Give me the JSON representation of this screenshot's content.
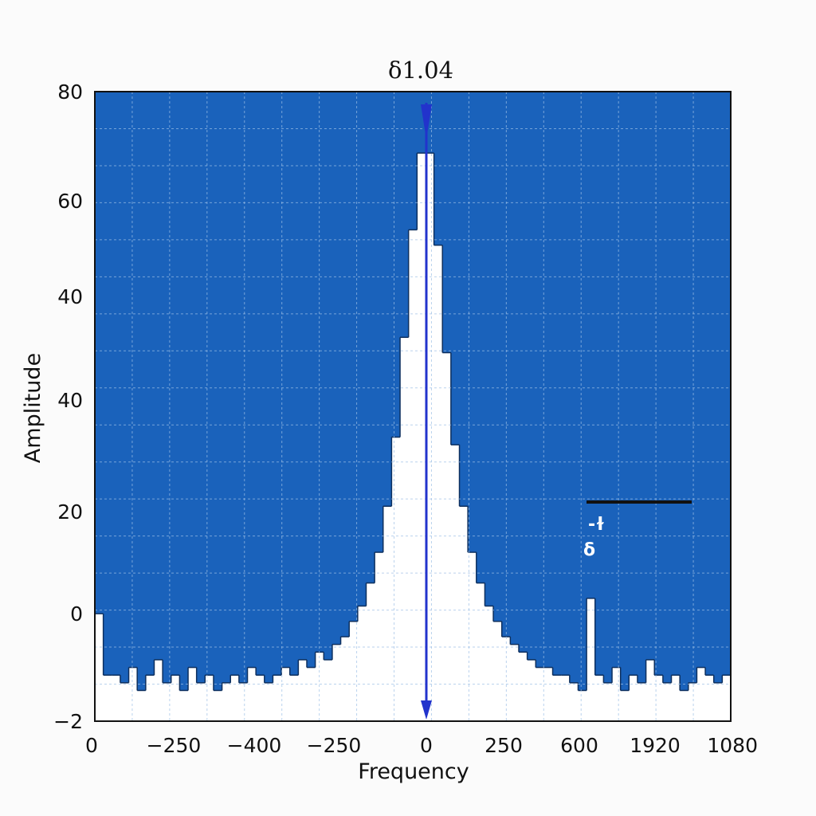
{
  "chart_data": {
    "type": "area",
    "title": "δ1.04",
    "xlabel": "Frequency",
    "ylabel": "Amplitude",
    "x_tick_labels": [
      "0",
      "−250",
      "−400",
      "−250",
      "0",
      "250",
      "600",
      "1920",
      "1080"
    ],
    "y_tick_labels": [
      "80",
      "60",
      "40",
      "40",
      "20",
      "0",
      "−2"
    ],
    "ylim": [
      -2,
      80
    ],
    "grid": true,
    "colors": {
      "fill": "#1a62bb",
      "grid": "#9ec0e6",
      "marker": "#2233cc",
      "below": "#ffffff"
    },
    "marker_line": {
      "x": "0",
      "label": "δ1.04"
    },
    "annotations": [
      {
        "text": "-ɫ"
      },
      {
        "text": "δ"
      }
    ],
    "series": [
      {
        "values": [
          12,
          4,
          4,
          3,
          5,
          2,
          4,
          6,
          3,
          4,
          2,
          5,
          3,
          4,
          2,
          3,
          4,
          3,
          5,
          4,
          3,
          4,
          5,
          4,
          6,
          5,
          7,
          6,
          8,
          9,
          11,
          13,
          16,
          20,
          26,
          35,
          48,
          62,
          72,
          72,
          60,
          46,
          34,
          26,
          20,
          16,
          13,
          11,
          9,
          8,
          7,
          6,
          5,
          5,
          4,
          4,
          3,
          2,
          14,
          4,
          3,
          5,
          2,
          4,
          3,
          6,
          4,
          3,
          4,
          2,
          3,
          5,
          4,
          3,
          4
        ]
      }
    ]
  }
}
